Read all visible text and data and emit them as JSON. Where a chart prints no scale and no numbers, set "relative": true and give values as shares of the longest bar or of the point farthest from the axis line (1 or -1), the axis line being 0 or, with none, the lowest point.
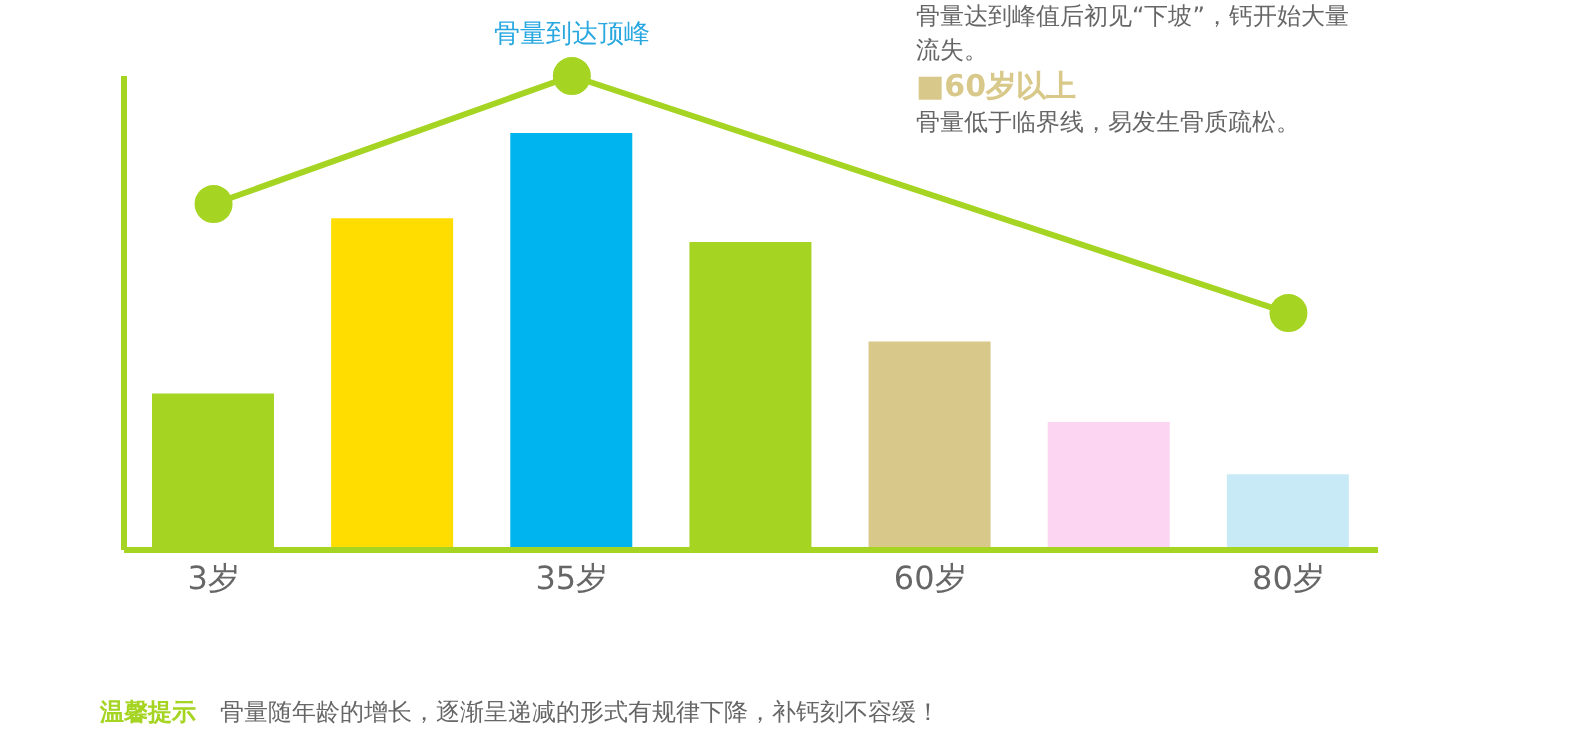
{
  "chart_data": {
    "type": "bar",
    "relative": true,
    "categories": [
      "3岁",
      null,
      "35岁",
      null,
      "60岁",
      null,
      "80岁"
    ],
    "series": [
      {
        "values": [
          0.33,
          0.7,
          0.88,
          0.65,
          0.44,
          0.27,
          0.16
        ],
        "colors": [
          "#a5d422",
          "#ffdd00",
          "#00b4f0",
          "#a5d422",
          "#d8c88a",
          "#fbd5f2",
          "#c8eaf7"
        ]
      },
      {
        "type": "line",
        "color": "#a5d422",
        "marker": "circle",
        "values": [
          0.73,
          null,
          1,
          null,
          null,
          null,
          0.5
        ]
      }
    ],
    "annotations": [
      {
        "text": "骨量到达顶峰",
        "x": "35岁",
        "y": 1
      },
      "骨量达到峰值后初见“下坡”，钙开始大量流失。",
      "■60岁以上",
      "骨量低于临界线，易发生骨质疏松。",
      "温馨提示",
      "骨量随年龄的增长，逐渐呈递减的形式有规律下降，补钙刻不容缓！"
    ],
    "grid": false,
    "legend": false
  }
}
